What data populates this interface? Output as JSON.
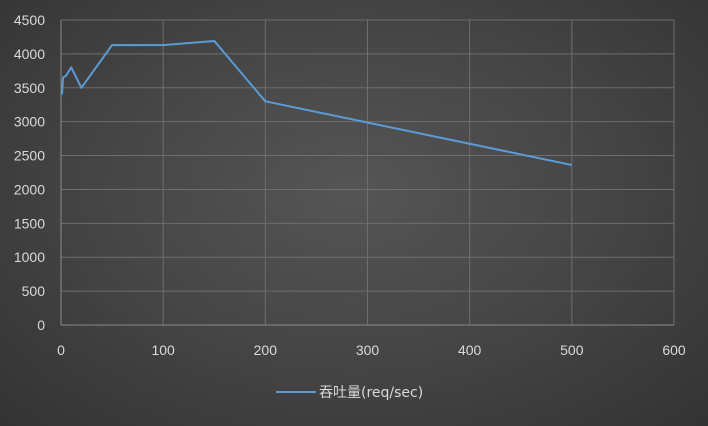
{
  "chart_data": {
    "type": "line",
    "title": "",
    "xlabel": "",
    "ylabel": "",
    "xlim": [
      0,
      600
    ],
    "ylim": [
      0,
      4500
    ],
    "x_ticks": [
      0,
      100,
      200,
      300,
      400,
      500,
      600
    ],
    "y_ticks": [
      0,
      500,
      1000,
      1500,
      2000,
      2500,
      3000,
      3500,
      4000,
      4500
    ],
    "grid": true,
    "legend": "bottom",
    "series": [
      {
        "name": "吞吐量(req/sec)",
        "color": "#5b9bd5",
        "x": [
          1,
          2,
          5,
          10,
          20,
          50,
          100,
          150,
          200,
          500
        ],
        "y": [
          3400,
          3650,
          3680,
          3800,
          3500,
          4130,
          4130,
          4190,
          3300,
          2360
        ]
      }
    ]
  }
}
